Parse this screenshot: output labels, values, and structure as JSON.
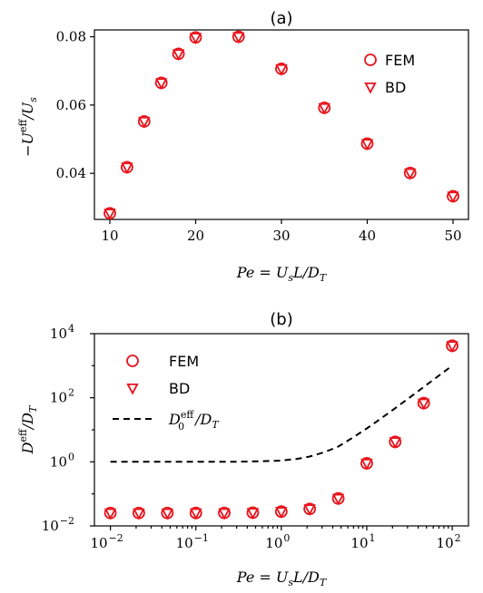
{
  "chart_data": [
    {
      "type": "scatter",
      "title": "(a)",
      "xlabel": "Pe = U_s L / D_T",
      "ylabel": "−U^eff / U_s",
      "xlim": [
        8.2,
        51.8
      ],
      "ylim": [
        0.0265,
        0.082
      ],
      "xticks": [
        10,
        20,
        30,
        40,
        50
      ],
      "xtick_labels": [
        "10",
        "20",
        "30",
        "40",
        "50"
      ],
      "yticks": [
        0.04,
        0.06,
        0.08
      ],
      "ytick_labels": [
        "0.04",
        "0.06",
        "0.08"
      ],
      "x": [
        10,
        12,
        14,
        16,
        18,
        20,
        25,
        30,
        35,
        40,
        45,
        50
      ],
      "series": [
        {
          "name": "FEM",
          "marker": "circle",
          "values": [
            0.0283,
            0.0418,
            0.0552,
            0.0665,
            0.075,
            0.0798,
            0.08,
            0.0706,
            0.0592,
            0.0487,
            0.0401,
            0.0333
          ]
        },
        {
          "name": "BD",
          "marker": "triangle-down",
          "values": [
            0.0283,
            0.0418,
            0.0552,
            0.0665,
            0.075,
            0.0798,
            0.08,
            0.0706,
            0.0592,
            0.0487,
            0.0401,
            0.0333
          ]
        }
      ],
      "legend_position": "top-right",
      "color": "#e8141c"
    },
    {
      "type": "scatter",
      "title": "(b)",
      "xlabel": "Pe = U_s L / D_T",
      "ylabel": "D^eff / D_T",
      "xscale": "log",
      "yscale": "log",
      "xlim": [
        0.0065,
        155
      ],
      "ylim": [
        0.01,
        10000
      ],
      "xticks": [
        0.01,
        0.1,
        1,
        10,
        100
      ],
      "xtick_labels": [
        [
          "10",
          "−2"
        ],
        [
          "10",
          "−1"
        ],
        [
          "10",
          "0"
        ],
        [
          "10",
          "1"
        ],
        [
          "10",
          "2"
        ]
      ],
      "yticks": [
        0.01,
        1,
        100,
        10000
      ],
      "ytick_labels": [
        [
          "10",
          "−2"
        ],
        [
          "10",
          "0"
        ],
        [
          "10",
          "2"
        ],
        [
          "10",
          "4"
        ]
      ],
      "x": [
        0.01,
        0.0215,
        0.0464,
        0.1,
        0.215,
        0.464,
        1,
        2.15,
        4.64,
        10,
        21.5,
        46.4,
        100
      ],
      "series": [
        {
          "name": "FEM",
          "marker": "circle",
          "values": [
            0.0253,
            0.0253,
            0.0253,
            0.0254,
            0.0255,
            0.026,
            0.028,
            0.034,
            0.072,
            0.9,
            4.2,
            68,
            4200
          ]
        },
        {
          "name": "BD",
          "marker": "triangle-down",
          "values": [
            0.0253,
            0.0253,
            0.0253,
            0.0254,
            0.0255,
            0.026,
            0.028,
            0.034,
            0.072,
            0.9,
            4.2,
            68,
            4200
          ]
        },
        {
          "name": "D_0^eff / D_T",
          "style": "dashed",
          "x": [
            0.01,
            0.1,
            0.3,
            0.6,
            1,
            1.5,
            2.15,
            3.2,
            4.64,
            7,
            10,
            15,
            21.5,
            32,
            46.4,
            70,
            100
          ],
          "values": [
            1.0,
            1.0,
            1.01,
            1.04,
            1.1,
            1.23,
            1.46,
            2.0,
            3.0,
            5.9,
            11.0,
            23.5,
            47.2,
            103,
            216,
            491,
            1001
          ]
        }
      ],
      "legend_position": "top-left",
      "color": "#e8141c"
    }
  ]
}
